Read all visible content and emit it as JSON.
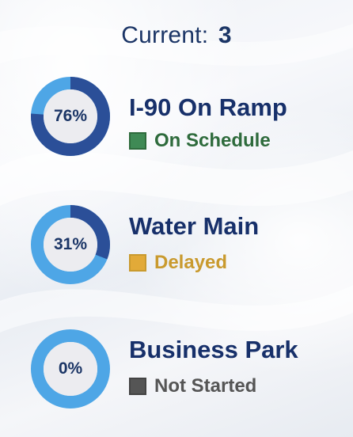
{
  "header": {
    "label": "Current:",
    "count": "3"
  },
  "colors": {
    "title": "#17306a",
    "ring_track": "#4ea6e6",
    "ring_fill": "#2b4f98",
    "on_schedule": "#2e6b3c",
    "delayed": "#c99a2e",
    "not_started": "#555555"
  },
  "projects": [
    {
      "name": "I-90 On Ramp",
      "progress_percent": 76,
      "progress_label": "76%",
      "status": "On Schedule",
      "status_color": "#2e6b3c",
      "swatch_color": "#3f8a55"
    },
    {
      "name": "Water Main",
      "progress_percent": 31,
      "progress_label": "31%",
      "status": "Delayed",
      "status_color": "#c99a2e",
      "swatch_color": "#e2aa38"
    },
    {
      "name": "Business Park",
      "progress_percent": 0,
      "progress_label": "0%",
      "status": "Not Started",
      "status_color": "#555555",
      "swatch_color": "#555555"
    }
  ]
}
